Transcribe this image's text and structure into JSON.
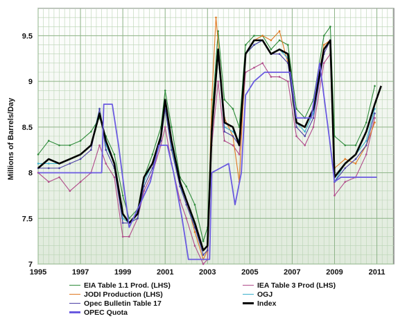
{
  "chart_data": {
    "type": "line",
    "title": "",
    "xlabel": "",
    "ylabel": "Millions of Barrels/Day",
    "xlim": [
      1995,
      2011.8
    ],
    "ylim": [
      7,
      9.8
    ],
    "x_ticks": [
      1995,
      1997,
      1999,
      2001,
      2003,
      2005,
      2007,
      2009,
      2011
    ],
    "x_tick_labels": [
      "1995",
      "1997",
      "1999",
      "2001",
      "2003",
      "2005",
      "2007",
      "2009",
      "2011"
    ],
    "y_ticks": [
      7,
      7.5,
      8,
      8.5,
      9,
      9.5
    ],
    "y_tick_labels": [
      "7",
      "7.5",
      "8",
      "8.5",
      "9",
      "9.5"
    ],
    "grid": true,
    "legend_position": "bottom",
    "series": [
      {
        "name": "EIA Table 1.1 Prod. (LHS)",
        "color": "#2e8b3a",
        "x": [
          1995,
          1995.5,
          1996,
          1996.5,
          1997,
          1997.5,
          1997.9,
          1998.2,
          1998.6,
          1999,
          1999.3,
          1999.7,
          2000,
          2000.4,
          2000.8,
          2001,
          2001.3,
          2001.7,
          2002,
          2002.4,
          2002.8,
          2003,
          2003.2,
          2003.5,
          2003.8,
          2004.2,
          2004.5,
          2004.8,
          2005.2,
          2005.6,
          2006,
          2006.4,
          2006.8,
          2007.2,
          2007.6,
          2008,
          2008.5,
          2008.8,
          2009,
          2009.5,
          2010,
          2010.5,
          2010.9
        ],
        "y": [
          8.2,
          8.35,
          8.3,
          8.3,
          8.35,
          8.45,
          8.6,
          8.4,
          8.2,
          7.75,
          7.5,
          7.6,
          7.95,
          8.2,
          8.5,
          8.9,
          8.5,
          7.95,
          7.85,
          7.65,
          7.25,
          7.4,
          8.6,
          9.55,
          8.8,
          8.7,
          8.5,
          9.4,
          9.5,
          9.5,
          9.35,
          9.45,
          9.4,
          8.7,
          8.6,
          8.8,
          9.5,
          9.6,
          8.4,
          8.3,
          8.3,
          8.55,
          8.95
        ]
      },
      {
        "name": "IEA Table 3 Prod (LHS)",
        "color": "#b04a8a",
        "x": [
          1995,
          1995.5,
          1996,
          1996.5,
          1997,
          1997.5,
          1997.9,
          1998.2,
          1998.6,
          1999,
          1999.3,
          1999.7,
          2000,
          2000.4,
          2000.8,
          2001,
          2001.3,
          2001.7,
          2002,
          2002.4,
          2002.8,
          2003,
          2003.2,
          2003.5,
          2003.8,
          2004.2,
          2004.5,
          2004.8,
          2005.2,
          2005.6,
          2006,
          2006.4,
          2006.8,
          2007.2,
          2007.6,
          2008,
          2008.5,
          2008.8,
          2009,
          2009.5,
          2010,
          2010.5,
          2010.9
        ],
        "y": [
          8.0,
          7.9,
          7.95,
          7.8,
          7.9,
          8.0,
          8.3,
          8.1,
          7.95,
          7.3,
          7.3,
          7.5,
          7.8,
          8.0,
          8.3,
          8.5,
          8.1,
          7.7,
          7.5,
          7.2,
          7.0,
          7.05,
          8.3,
          9.0,
          8.35,
          8.3,
          8.2,
          9.1,
          9.15,
          9.2,
          9.05,
          9.05,
          9.0,
          8.4,
          8.3,
          8.5,
          9.2,
          9.3,
          7.75,
          7.9,
          7.95,
          8.2,
          8.6
        ]
      },
      {
        "name": "JODI Production (LHS)",
        "color": "#e07820",
        "x": [
          2002,
          2002.4,
          2002.8,
          2003,
          2003.2,
          2003.4,
          2003.8,
          2004.2,
          2004.5,
          2004.8,
          2005.2,
          2005.6,
          2006,
          2006.4,
          2006.8,
          2007.2,
          2007.6,
          2008,
          2008.5,
          2008.8,
          2009,
          2009.5,
          2010,
          2010.5,
          2010.9
        ],
        "y": [
          7.7,
          7.35,
          7.05,
          7.15,
          8.8,
          9.7,
          8.6,
          8.4,
          7.9,
          9.3,
          9.45,
          9.5,
          9.45,
          9.55,
          9.2,
          8.55,
          8.5,
          8.7,
          9.4,
          9.45,
          8.05,
          8.15,
          8.1,
          8.3,
          8.55
        ]
      },
      {
        "name": "OGJ",
        "color": "#3bb0cc",
        "x": [
          1995,
          1995.5,
          1996,
          1996.5,
          1997,
          1997.5,
          1997.9,
          1998.2,
          1998.6,
          1999,
          1999.3,
          1999.7,
          2000,
          2000.4,
          2000.8,
          2001,
          2001.3,
          2001.7,
          2002,
          2002.4,
          2002.8,
          2003,
          2003.2,
          2003.5,
          2003.8,
          2004.2,
          2004.5,
          2004.8,
          2005.2,
          2005.6,
          2006,
          2006.4,
          2006.8,
          2007.2,
          2007.6,
          2008,
          2008.5,
          2008.8,
          2009,
          2009.5,
          2010,
          2010.5,
          2010.9
        ],
        "y": [
          8.1,
          8.1,
          8.1,
          8.15,
          8.2,
          8.3,
          8.7,
          8.3,
          8.1,
          7.5,
          7.45,
          7.5,
          7.9,
          8.1,
          8.4,
          8.7,
          8.3,
          7.85,
          7.7,
          7.4,
          7.15,
          7.2,
          8.45,
          9.3,
          8.5,
          8.45,
          8.35,
          9.3,
          9.4,
          9.45,
          9.3,
          9.35,
          9.25,
          8.55,
          8.45,
          8.65,
          9.35,
          9.45,
          7.9,
          8.1,
          8.2,
          8.35,
          8.7
        ]
      },
      {
        "name": "Opec Bulletin Table 17",
        "color": "#4b3fa6",
        "x": [
          1995,
          1995.5,
          1996,
          1996.5,
          1997,
          1997.5,
          1997.9,
          1998.2,
          1998.6,
          1999,
          1999.3,
          1999.7,
          2000,
          2000.4,
          2000.8,
          2001,
          2001.3,
          2001.7,
          2002,
          2002.4,
          2002.8,
          2003,
          2003.2,
          2003.5,
          2003.8,
          2004.2,
          2004.5,
          2004.8,
          2005.2,
          2005.6,
          2006,
          2006.4,
          2006.8,
          2007.2,
          2007.6,
          2008,
          2008.5,
          2008.8,
          2009,
          2009.5,
          2010,
          2010.5,
          2010.9
        ],
        "y": [
          8.05,
          8.05,
          8.05,
          8.1,
          8.15,
          8.25,
          8.7,
          8.25,
          8.05,
          7.45,
          7.45,
          7.5,
          7.85,
          8.05,
          8.35,
          8.7,
          8.25,
          7.85,
          7.65,
          7.4,
          7.1,
          7.15,
          8.4,
          9.3,
          8.45,
          8.4,
          8.3,
          9.3,
          9.4,
          9.45,
          9.3,
          9.3,
          9.2,
          8.5,
          8.4,
          8.6,
          9.3,
          9.45,
          7.9,
          8.05,
          8.15,
          8.3,
          8.65
        ]
      },
      {
        "name": "Index",
        "color": "#000000",
        "x": [
          1995,
          1995.5,
          1996,
          1996.5,
          1997,
          1997.5,
          1997.9,
          1998.2,
          1998.6,
          1999,
          1999.3,
          1999.7,
          2000,
          2000.4,
          2000.8,
          2001,
          2001.3,
          2001.7,
          2002,
          2002.4,
          2002.8,
          2003,
          2003.2,
          2003.5,
          2003.8,
          2004.2,
          2004.5,
          2004.8,
          2005.2,
          2005.6,
          2006,
          2006.4,
          2006.8,
          2007.2,
          2007.6,
          2008,
          2008.5,
          2008.8,
          2009,
          2009.5,
          2010,
          2010.5,
          2010.9,
          2011.2
        ],
        "y": [
          8.05,
          8.15,
          8.1,
          8.15,
          8.2,
          8.3,
          8.65,
          8.35,
          8.1,
          7.55,
          7.45,
          7.55,
          7.95,
          8.1,
          8.4,
          8.8,
          8.35,
          7.9,
          7.7,
          7.45,
          7.15,
          7.2,
          8.45,
          9.35,
          8.55,
          8.5,
          8.3,
          9.3,
          9.45,
          9.45,
          9.3,
          9.35,
          9.3,
          8.55,
          8.5,
          8.7,
          9.35,
          9.45,
          7.95,
          8.1,
          8.2,
          8.45,
          8.75,
          8.95
        ]
      },
      {
        "name": "OPEC Quota",
        "color": "#6a5ae0",
        "x": [
          1995,
          1998,
          1998.1,
          1998.5,
          1998.8,
          1999.3,
          2000.3,
          2000.7,
          2001.1,
          2001.4,
          2001.8,
          2002.1,
          2003.1,
          2003.2,
          2003.6,
          2004.0,
          2004.3,
          2004.6,
          2004.8,
          2005.2,
          2005.7,
          2006.9,
          2007.2,
          2007.9,
          2008.3,
          2008.8,
          2009.0,
          2009.3,
          2011.0
        ],
        "y": [
          8.0,
          8.0,
          8.75,
          8.75,
          8.3,
          7.4,
          7.9,
          8.3,
          8.3,
          8.0,
          7.5,
          7.05,
          7.05,
          8.0,
          8.05,
          8.1,
          7.65,
          8.0,
          8.85,
          9.0,
          9.1,
          9.1,
          8.6,
          8.6,
          9.2,
          8.3,
          7.9,
          7.95,
          7.95
        ]
      }
    ]
  }
}
